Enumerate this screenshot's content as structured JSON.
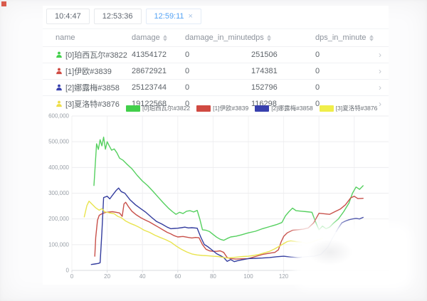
{
  "tabs": [
    {
      "label": "10:4:47",
      "active": false,
      "closable": false
    },
    {
      "label": "12:53:36",
      "active": false,
      "closable": false
    },
    {
      "label": "12:59:11",
      "active": true,
      "closable": true,
      "close_glyph": "×"
    }
  ],
  "table": {
    "columns": [
      {
        "key": "name",
        "label": "name",
        "sortable": false
      },
      {
        "key": "damage",
        "label": "damage",
        "sortable": true
      },
      {
        "key": "damage_in_minute",
        "label": "damage_in_minute",
        "sortable": true
      },
      {
        "key": "dps",
        "label": "dps",
        "sortable": true
      },
      {
        "key": "dps_in_minute",
        "label": "dps_in_minute",
        "sortable": true
      }
    ],
    "rows": [
      {
        "name": "[0]珀西瓦尔#3822",
        "color": "#42cf4b",
        "damage": "41354172",
        "damage_in_minute": "0",
        "dps": "251506",
        "dps_in_minute": "0"
      },
      {
        "name": "[1]伊欧#3839",
        "color": "#d04a42",
        "damage": "28672921",
        "damage_in_minute": "0",
        "dps": "174381",
        "dps_in_minute": "0"
      },
      {
        "name": "[2]娜露梅#3858",
        "color": "#3840ae",
        "damage": "25123744",
        "damage_in_minute": "0",
        "dps": "152796",
        "dps_in_minute": "0"
      },
      {
        "name": "[3]夏洛特#3876",
        "color": "#eede49",
        "damage": "19122568",
        "damage_in_minute": "0",
        "dps": "116298",
        "dps_in_minute": "0"
      }
    ],
    "row_chevron": "›"
  },
  "legend": [
    {
      "label": "[0]珀西瓦尔#3822",
      "color": "#42cf4b"
    },
    {
      "label": "[1]伊欧#3839",
      "color": "#d04a42"
    },
    {
      "label": "[2]娜露梅#3858",
      "color": "#3840ae"
    },
    {
      "label": "[3]夏洛特#3876",
      "color": "#f0ee4a"
    }
  ],
  "chart_data": {
    "type": "line",
    "title": "",
    "xlabel": "",
    "ylabel": "",
    "grid": true,
    "legend_position": "top",
    "xlim": [
      0,
      179
    ],
    "ylim": [
      0,
      600000
    ],
    "x_ticks": [
      0,
      20,
      40,
      60,
      80,
      100,
      120
    ],
    "grid_x_ticks": [
      0,
      20,
      40,
      60,
      80,
      100,
      120,
      140,
      160
    ],
    "y_ticks": [
      0,
      100000,
      200000,
      300000,
      400000,
      500000,
      600000
    ],
    "series": [
      {
        "name": "[0]珀西瓦尔#3822",
        "color": "#55d05f",
        "points": [
          [
            12.5,
            330000
          ],
          [
            14,
            492000
          ],
          [
            15,
            470000
          ],
          [
            16,
            508000
          ],
          [
            17,
            484000
          ],
          [
            18,
            518000
          ],
          [
            19,
            471000
          ],
          [
            20,
            500000
          ],
          [
            21,
            486000
          ],
          [
            22.5,
            467000
          ],
          [
            24,
            472000
          ],
          [
            25.5,
            457000
          ],
          [
            27,
            436000
          ],
          [
            29,
            428000
          ],
          [
            31,
            414000
          ],
          [
            34,
            395000
          ],
          [
            37,
            369000
          ],
          [
            40,
            347000
          ],
          [
            43,
            329000
          ],
          [
            46,
            307000
          ],
          [
            49,
            284000
          ],
          [
            52,
            261000
          ],
          [
            55,
            240000
          ],
          [
            57,
            228000
          ],
          [
            59,
            218000
          ],
          [
            61,
            226000
          ],
          [
            63,
            221000
          ],
          [
            65,
            230000
          ],
          [
            67,
            232000
          ],
          [
            69,
            227000
          ],
          [
            71,
            233000
          ],
          [
            72.5,
            199000
          ],
          [
            74,
            158000
          ],
          [
            76,
            156000
          ],
          [
            78,
            151000
          ],
          [
            80,
            140000
          ],
          [
            82,
            129000
          ],
          [
            84,
            121000
          ],
          [
            86,
            117000
          ],
          [
            88,
            124000
          ],
          [
            90,
            130000
          ],
          [
            93,
            133000
          ],
          [
            96,
            138000
          ],
          [
            100,
            146000
          ],
          [
            104,
            152000
          ],
          [
            108,
            162000
          ],
          [
            112,
            170000
          ],
          [
            116,
            178000
          ],
          [
            119,
            186000
          ],
          [
            121,
            212000
          ],
          [
            123,
            228000
          ],
          [
            125,
            242000
          ],
          [
            127,
            232000
          ],
          [
            130,
            230000
          ],
          [
            133,
            228000
          ],
          [
            136,
            226000
          ],
          [
            138,
            190000
          ],
          [
            140,
            158000
          ],
          [
            142,
            172000
          ],
          [
            144,
            162000
          ],
          [
            146,
            168000
          ],
          [
            148,
            182000
          ],
          [
            151,
            200000
          ],
          [
            154,
            228000
          ],
          [
            157,
            262000
          ],
          [
            159,
            300000
          ],
          [
            161,
            324000
          ],
          [
            163,
            315000
          ],
          [
            165,
            329000
          ]
        ]
      },
      {
        "name": "[1]伊欧#3839",
        "color": "#c8504a",
        "points": [
          [
            13,
            55000
          ],
          [
            13.5,
            128000
          ],
          [
            14.5,
            195000
          ],
          [
            15.5,
            214000
          ],
          [
            17,
            220000
          ],
          [
            19,
            225000
          ],
          [
            21,
            227000
          ],
          [
            23,
            228000
          ],
          [
            25,
            226000
          ],
          [
            27,
            223000
          ],
          [
            28.5,
            210000
          ],
          [
            29.5,
            258000
          ],
          [
            30.5,
            265000
          ],
          [
            32,
            248000
          ],
          [
            34,
            230000
          ],
          [
            36.5,
            216000
          ],
          [
            39,
            205000
          ],
          [
            41.5,
            196000
          ],
          [
            44,
            188000
          ],
          [
            46.5,
            178000
          ],
          [
            49,
            168000
          ],
          [
            51.5,
            158000
          ],
          [
            54,
            148000
          ],
          [
            56,
            142000
          ],
          [
            58,
            135000
          ],
          [
            60,
            130000
          ],
          [
            63,
            132000
          ],
          [
            66,
            128000
          ],
          [
            68,
            126000
          ],
          [
            70,
            128000
          ],
          [
            72,
            127000
          ],
          [
            74,
            100000
          ],
          [
            76,
            82000
          ],
          [
            78,
            76000
          ],
          [
            80,
            74000
          ],
          [
            82,
            74000
          ],
          [
            84,
            76000
          ],
          [
            86,
            70000
          ],
          [
            88,
            50000
          ],
          [
            90,
            46000
          ],
          [
            93,
            44000
          ],
          [
            96,
            45000
          ],
          [
            100,
            46000
          ],
          [
            104,
            54000
          ],
          [
            108,
            62000
          ],
          [
            112,
            67000
          ],
          [
            115,
            70000
          ],
          [
            117,
            80000
          ],
          [
            118.5,
            110000
          ],
          [
            120,
            132000
          ],
          [
            122,
            146000
          ],
          [
            125,
            156000
          ],
          [
            128,
            158000
          ],
          [
            131,
            160000
          ],
          [
            134,
            165000
          ],
          [
            137,
            185000
          ],
          [
            140,
            222000
          ],
          [
            143,
            220000
          ],
          [
            146,
            218000
          ],
          [
            149,
            228000
          ],
          [
            152,
            238000
          ],
          [
            155,
            255000
          ],
          [
            158,
            282000
          ],
          [
            160,
            288000
          ],
          [
            162,
            279000
          ],
          [
            165,
            280000
          ]
        ]
      },
      {
        "name": "[2]娜露梅#3858",
        "color": "#333c9e",
        "points": [
          [
            11,
            23000
          ],
          [
            13,
            25000
          ],
          [
            15,
            27000
          ],
          [
            16,
            30000
          ],
          [
            17,
            150000
          ],
          [
            18,
            283000
          ],
          [
            20,
            288000
          ],
          [
            21.5,
            278000
          ],
          [
            23,
            292000
          ],
          [
            25,
            310000
          ],
          [
            26.5,
            320000
          ],
          [
            28,
            306000
          ],
          [
            30,
            300000
          ],
          [
            33,
            274000
          ],
          [
            36,
            255000
          ],
          [
            39,
            240000
          ],
          [
            42,
            225000
          ],
          [
            45,
            207000
          ],
          [
            48,
            190000
          ],
          [
            51,
            180000
          ],
          [
            54,
            168000
          ],
          [
            56,
            162000
          ],
          [
            58,
            163000
          ],
          [
            60,
            164000
          ],
          [
            62,
            166000
          ],
          [
            64,
            168000
          ],
          [
            66,
            165000
          ],
          [
            68,
            166000
          ],
          [
            71,
            164000
          ],
          [
            73,
            130000
          ],
          [
            75,
            101000
          ],
          [
            77,
            92000
          ],
          [
            80,
            76000
          ],
          [
            82,
            65000
          ],
          [
            84,
            58000
          ],
          [
            86,
            50000
          ],
          [
            88,
            35000
          ],
          [
            90,
            42000
          ],
          [
            92,
            34000
          ],
          [
            94,
            38000
          ],
          [
            97,
            42000
          ],
          [
            100,
            46000
          ],
          [
            104,
            47000
          ],
          [
            108,
            48000
          ],
          [
            112,
            50000
          ],
          [
            116,
            53000
          ],
          [
            120,
            55000
          ],
          [
            124,
            52000
          ],
          [
            128,
            50000
          ],
          [
            131,
            52000
          ],
          [
            134,
            54000
          ],
          [
            137,
            55000
          ],
          [
            141,
            62000
          ],
          [
            145,
            90000
          ],
          [
            148,
            130000
          ],
          [
            151,
            165000
          ],
          [
            153,
            185000
          ],
          [
            155,
            192000
          ],
          [
            157,
            197000
          ],
          [
            159,
            200000
          ],
          [
            161,
            202000
          ],
          [
            163,
            200000
          ],
          [
            165,
            206000
          ]
        ]
      },
      {
        "name": "[3]夏洛特#3876",
        "color": "#e9e44e",
        "points": [
          [
            7,
            208000
          ],
          [
            8.5,
            252000
          ],
          [
            9.7,
            269000
          ],
          [
            11.5,
            257000
          ],
          [
            13.5,
            243000
          ],
          [
            15.5,
            234000
          ],
          [
            17,
            240000
          ],
          [
            18.5,
            228000
          ],
          [
            21,
            224000
          ],
          [
            24,
            220000
          ],
          [
            26,
            210000
          ],
          [
            28,
            205000
          ],
          [
            30.5,
            192000
          ],
          [
            33,
            183000
          ],
          [
            35.5,
            176000
          ],
          [
            38,
            168000
          ],
          [
            41,
            156000
          ],
          [
            44,
            148000
          ],
          [
            47,
            137000
          ],
          [
            50,
            128000
          ],
          [
            53,
            120000
          ],
          [
            56,
            110000
          ],
          [
            59,
            95000
          ],
          [
            62,
            82000
          ],
          [
            65,
            72000
          ],
          [
            68,
            64000
          ],
          [
            71,
            60000
          ],
          [
            74,
            58000
          ],
          [
            77,
            57000
          ],
          [
            80,
            55000
          ],
          [
            83,
            54000
          ],
          [
            86,
            50000
          ],
          [
            88,
            48000
          ],
          [
            91,
            50000
          ],
          [
            94,
            52000
          ],
          [
            97,
            54000
          ],
          [
            100,
            55000
          ],
          [
            103,
            58000
          ],
          [
            106,
            62000
          ],
          [
            109,
            68000
          ],
          [
            112,
            74000
          ],
          [
            115,
            84000
          ],
          [
            118,
            96000
          ],
          [
            120,
            104000
          ],
          [
            122,
            112000
          ],
          [
            124,
            115000
          ],
          [
            127,
            112000
          ],
          [
            130,
            110000
          ],
          [
            133,
            105000
          ],
          [
            136,
            110000
          ],
          [
            139,
            118000
          ],
          [
            142,
            124000
          ]
        ]
      }
    ]
  }
}
